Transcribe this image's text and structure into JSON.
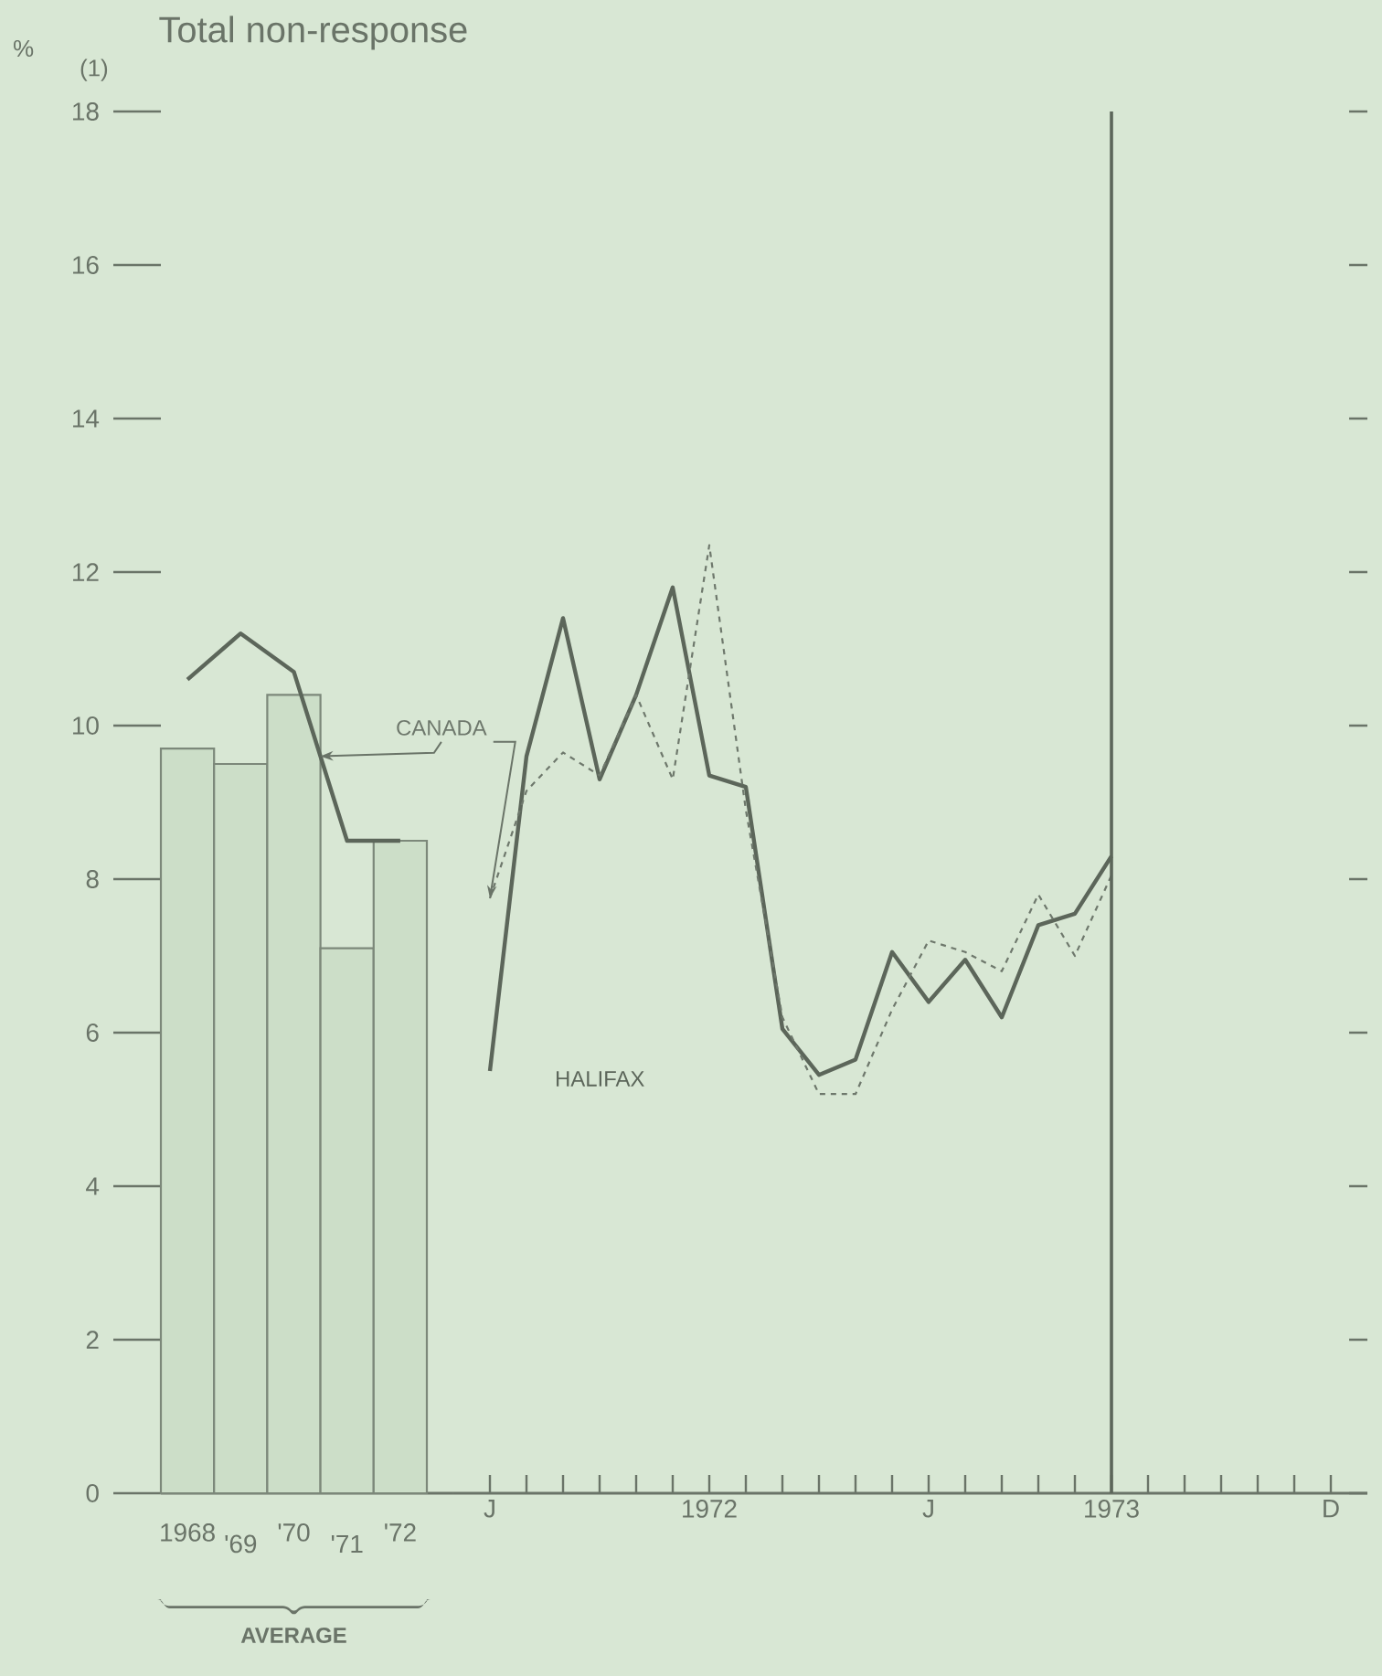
{
  "chart_data": [
    {
      "type": "bar",
      "title": "Total non-response",
      "ylabel": "%",
      "categories": [
        "1968",
        "'69",
        "'70",
        "'71",
        "'72"
      ],
      "series": [
        {
          "type": "bar",
          "color": "#7c887a",
          "values": [
            9.7,
            9.5,
            10.4,
            7.1,
            8.5
          ]
        },
        {
          "type": "line",
          "color": "#5c665a",
          "values": [
            10.6,
            11.2,
            10.7,
            8.5,
            8.5
          ]
        }
      ],
      "ylim": [
        0,
        18
      ],
      "yticks": [
        0,
        2,
        4,
        6,
        8,
        10,
        12,
        14,
        16,
        18
      ],
      "annotations": [
        "(1)",
        "AVERAGE"
      ]
    },
    {
      "type": "line",
      "x": [
        "1972-01",
        "1972-02",
        "1972-03",
        "1972-04",
        "1972-05",
        "1972-06",
        "1972-07",
        "1972-08",
        "1972-09",
        "1972-10",
        "1972-11",
        "1972-12",
        "1973-01",
        "1973-02",
        "1973-03",
        "1973-04",
        "1973-05",
        "1973-06"
      ],
      "series": [
        {
          "name": "HALIFAX",
          "color": "#5c665a",
          "line_style": "solid",
          "values": [
            5.5,
            9.6,
            11.4,
            9.3,
            10.4,
            11.8,
            9.35,
            9.2,
            6.05,
            5.45,
            5.65,
            7.05,
            6.4,
            6.95,
            6.2,
            7.4,
            7.55,
            8.3
          ]
        },
        {
          "name": "CANADA",
          "color": "#6e786c",
          "line_style": "dashed",
          "values": [
            7.75,
            9.15,
            9.65,
            9.35,
            10.4,
            9.3,
            12.35,
            8.9,
            6.2,
            5.2,
            5.2,
            6.3,
            7.2,
            7.05,
            6.8,
            7.8,
            7.0,
            8.05
          ]
        }
      ],
      "xlim": [
        "1971-12",
        "1974-01"
      ],
      "xticks": [
        {
          "value": "1972-01",
          "label": "J"
        },
        {
          "value": "1972-02",
          "label": null
        },
        {
          "value": "1972-03",
          "label": null
        },
        {
          "value": "1972-04",
          "label": null
        },
        {
          "value": "1972-05",
          "label": null
        },
        {
          "value": "1972-06",
          "label": null
        },
        {
          "value": "1972-07",
          "label": "1972"
        },
        {
          "value": "1972-08",
          "label": null
        },
        {
          "value": "1972-09",
          "label": null
        },
        {
          "value": "1972-10",
          "label": null
        },
        {
          "value": "1972-11",
          "label": null
        },
        {
          "value": "1972-12",
          "label": null
        },
        {
          "value": "1973-01",
          "label": "J"
        },
        {
          "value": "1973-02",
          "label": null
        },
        {
          "value": "1973-03",
          "label": null
        },
        {
          "value": "1973-04",
          "label": null
        },
        {
          "value": "1973-05",
          "label": null
        },
        {
          "value": "1973-06",
          "label": "1973"
        },
        {
          "value": "1973-07",
          "label": null
        },
        {
          "value": "1973-08",
          "label": null
        },
        {
          "value": "1973-09",
          "label": null
        },
        {
          "value": "1973-10",
          "label": null
        },
        {
          "value": "1973-11",
          "label": null
        },
        {
          "value": "1973-12",
          "label": "D"
        }
      ],
      "ylim": [
        0,
        18
      ],
      "yticks": [
        0,
        2,
        4,
        6,
        8,
        10,
        12,
        14,
        16,
        18
      ],
      "tick_labels": "x",
      "ref_lines": [
        {
          "axis": "x",
          "value": "1973-06",
          "color": "#5c665a"
        }
      ]
    }
  ]
}
